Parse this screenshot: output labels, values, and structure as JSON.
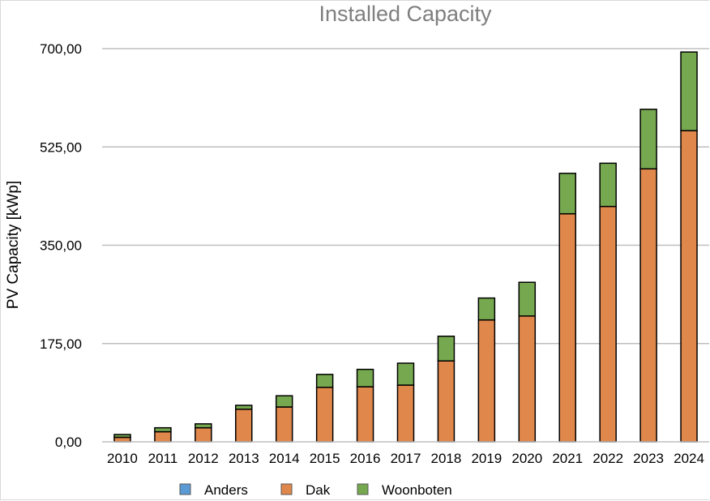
{
  "chart_data": {
    "type": "bar",
    "stacked": true,
    "title": "Installed Capacity",
    "ylabel": "PV Capacity [kWp]",
    "xlabel": "",
    "ylim": [
      0,
      700
    ],
    "yticks": [
      "0,00",
      "175,00",
      "350,00",
      "525,00",
      "700,00"
    ],
    "ytick_values": [
      0,
      175,
      350,
      525,
      700
    ],
    "categories": [
      "2010",
      "2011",
      "2012",
      "2013",
      "2014",
      "2015",
      "2016",
      "2017",
      "2018",
      "2019",
      "2020",
      "2021",
      "2022",
      "2023",
      "2024"
    ],
    "series": [
      {
        "name": "Anders",
        "color": "#5b9bd5",
        "values": [
          0,
          0,
          0,
          0,
          0,
          0,
          0,
          0,
          0,
          0,
          0,
          0,
          0,
          0,
          0
        ]
      },
      {
        "name": "Dak",
        "color": "#e0874b",
        "values": [
          8,
          18,
          25,
          58,
          62,
          97,
          98,
          101,
          144,
          217,
          224,
          406,
          419,
          486,
          554
        ]
      },
      {
        "name": "Woonboten",
        "color": "#76a84f",
        "values": [
          5,
          7,
          7,
          7,
          20,
          23,
          31,
          39,
          44,
          39,
          60,
          72,
          77,
          106,
          140
        ]
      }
    ],
    "grid": true,
    "legend_position": "bottom"
  }
}
